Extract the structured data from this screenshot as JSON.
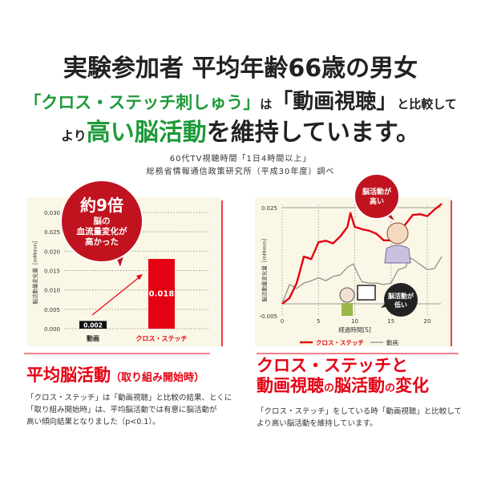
{
  "headline": {
    "line1": "実験参加者 平均年齢66歳の男女",
    "line2_green": "「クロス・ステッチ刺しゅう」",
    "line2_mid": "は",
    "line2_big": "「動画視聴」",
    "line2_end": "と比較して",
    "line3_start": "より",
    "line3_green": "高い脳活動",
    "line3_end": "を維持しています。"
  },
  "source": {
    "line1": "60代TV視聴時間「1日4時間以上」",
    "line2": "総務省情報通信政策研究所（平成30年度）調べ"
  },
  "colors": {
    "accent_red": "#e50012",
    "bubble_red": "#c0131f",
    "green": "#1e9a3a",
    "panel_bg": "#fbf7e6",
    "gray_line": "#888888"
  },
  "chart_data": [
    {
      "type": "bar",
      "ylabel": "脳活動量変化量［mMmm］",
      "ylim": [
        0,
        0.03
      ],
      "yticks": [
        "0.000",
        "0.005",
        "0.010",
        "0.015",
        "0.020",
        "0.025",
        "0.030"
      ],
      "categories": [
        "動画",
        "クロス・ステッチ"
      ],
      "values": [
        0.002,
        0.018
      ],
      "data_labels": [
        "0.002",
        "0.018"
      ],
      "grid": true,
      "annotation": {
        "big": "約9倍",
        "line1": "脳の",
        "line2": "血流量変化が",
        "line3": "高かった"
      }
    },
    {
      "type": "line",
      "ylabel": "脳活動量変化量［mMmm］",
      "xlabel": "経過時間[S]",
      "xlim": [
        0,
        22
      ],
      "ylim": [
        -0.005,
        0.025
      ],
      "xticks": [
        "0",
        "5",
        "10",
        "15",
        "20"
      ],
      "yticks": [
        "-0.005",
        "0.025"
      ],
      "grid": true,
      "legend_position": "bottom",
      "series": [
        {
          "name": "クロス・ステッチ",
          "color": "#e50012",
          "x": [
            0,
            1,
            2,
            3,
            4,
            5,
            6,
            7,
            8,
            9,
            9.4,
            10,
            11,
            12,
            13,
            14,
            15,
            16,
            17,
            18,
            19,
            20,
            21,
            22
          ],
          "y": [
            0,
            0.0015,
            0.0054,
            0.0123,
            0.0116,
            0.016,
            0.0164,
            0.0157,
            0.0175,
            0.02,
            0.0236,
            0.02,
            0.0194,
            0.019,
            0.0182,
            0.0165,
            0.0165,
            0.0179,
            0.0207,
            0.0231,
            0.0233,
            0.0228,
            0.0245,
            0.026
          ]
        },
        {
          "name": "動画",
          "color": "#888888",
          "x": [
            0,
            1,
            2,
            3,
            4,
            5,
            6,
            7,
            8,
            9,
            9.8,
            10.5,
            11,
            12,
            13,
            14,
            15,
            16,
            17,
            17.5,
            18,
            19,
            20,
            21,
            22
          ],
          "y": [
            0,
            0.005,
            0.004,
            0.0054,
            0.006,
            0.0068,
            0.006,
            0.0071,
            0.0075,
            0.0095,
            0.0104,
            0.0075,
            0.0057,
            0.0054,
            0.0054,
            0.005,
            0.0054,
            0.0089,
            0.0095,
            0.012,
            0.0116,
            0.0102,
            0.0089,
            0.0092,
            0.0123
          ]
        }
      ],
      "annotations": {
        "high": [
          "脳活動が",
          "高い"
        ],
        "low": [
          "脳活動が",
          "低い"
        ]
      }
    }
  ],
  "left_section": {
    "title": "平均脳活動",
    "subtitle": "（取り組み開始時）",
    "text": [
      "「クロス・ステッチ」は「動画視聴」と比較の結果、とくに",
      "「取り組み開始時」は、平均脳活動では有意に脳活動が",
      "高い傾向結果となりました（p<0.1）。"
    ]
  },
  "right_section": {
    "title1": "クロス・ステッチと",
    "title2a": "動画視聴",
    "title2b": "の",
    "title2c": "脳活動",
    "title2d": "の",
    "title2e": "変化",
    "text": [
      "「クロス・ステッチ」をしている時「動画視聴」と比較して",
      "より高い脳活動を維持しています。"
    ]
  }
}
